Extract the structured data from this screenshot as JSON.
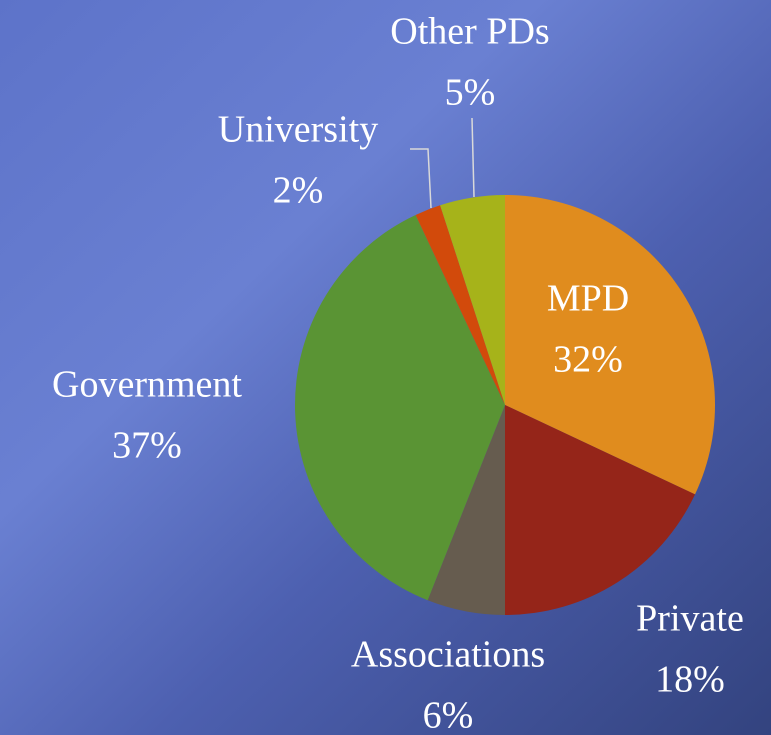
{
  "chart_data": {
    "type": "pie",
    "categories": [
      "MPD",
      "Private",
      "Associations",
      "Government",
      "University",
      "Other PDs"
    ],
    "values": [
      32,
      18,
      6,
      37,
      2,
      5
    ],
    "value_labels": [
      "32%",
      "18%",
      "6%",
      "37%",
      "2%",
      "5%"
    ],
    "colors": [
      "#e08c1e",
      "#952519",
      "#665c4f",
      "#5a9434",
      "#d24a0b",
      "#a6b31a"
    ]
  }
}
